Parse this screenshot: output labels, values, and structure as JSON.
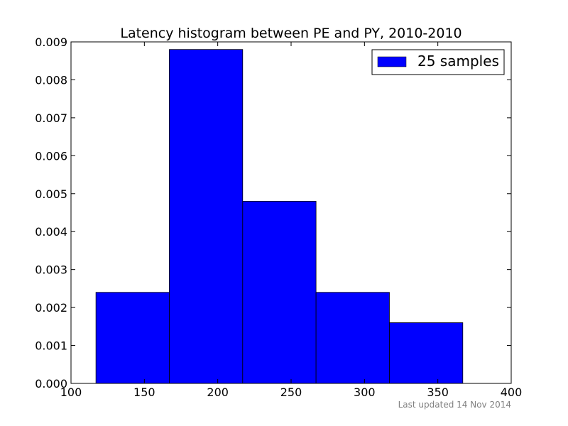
{
  "chart_data": {
    "type": "bar",
    "title": "Latency histogram between PE and PY, 2010-2010",
    "xlabel": "",
    "ylabel": "",
    "bins": [
      {
        "start": 117,
        "end": 167,
        "value": 0.0024
      },
      {
        "start": 167,
        "end": 217,
        "value": 0.0088
      },
      {
        "start": 217,
        "end": 267,
        "value": 0.0048
      },
      {
        "start": 267,
        "end": 317,
        "value": 0.0024
      },
      {
        "start": 317,
        "end": 367,
        "value": 0.0016
      }
    ],
    "xlim": [
      100,
      400
    ],
    "ylim": [
      0,
      0.009
    ],
    "xticks": [
      100,
      150,
      200,
      250,
      300,
      350,
      400
    ],
    "xtick_labels": [
      "100",
      "150",
      "200",
      "250",
      "300",
      "350",
      "400"
    ],
    "yticks": [
      0,
      0.001,
      0.002,
      0.003,
      0.004,
      0.005,
      0.006,
      0.007,
      0.008,
      0.009
    ],
    "ytick_labels": [
      "0.000",
      "0.001",
      "0.002",
      "0.003",
      "0.004",
      "0.005",
      "0.006",
      "0.007",
      "0.008",
      "0.009"
    ],
    "legend": {
      "label": "25 samples",
      "placement": "top-right"
    },
    "bar_color": "#0000ff",
    "edge_color": "#000000",
    "grid": false
  },
  "footer": {
    "text": "Last updated 14 Nov 2014"
  }
}
